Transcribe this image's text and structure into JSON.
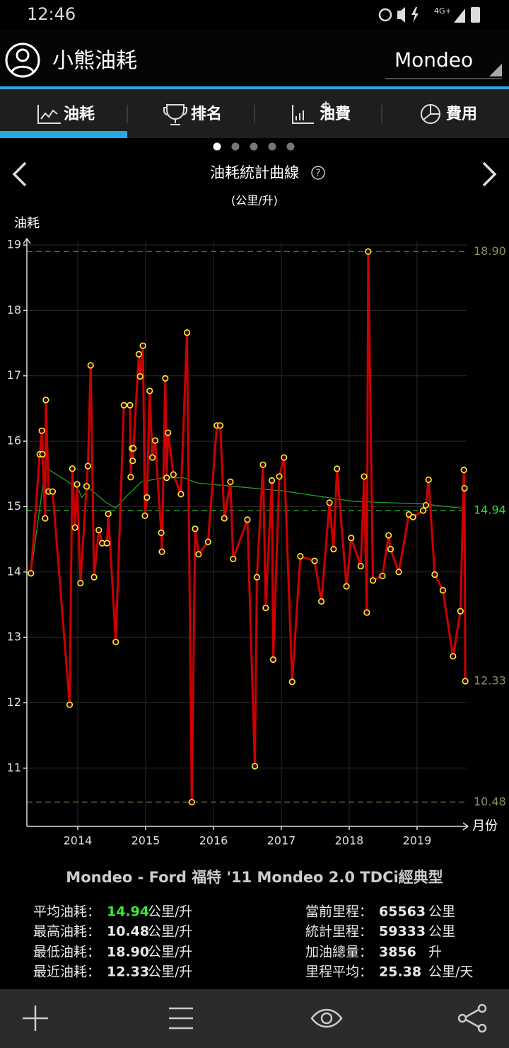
{
  "status_bar": {
    "time": "12:46",
    "network": "4G+"
  },
  "header": {
    "title": "小熊油耗",
    "car": "Mondeo"
  },
  "tabs": [
    "油耗",
    "排名",
    "油費",
    "費用"
  ],
  "chart_data": {
    "type": "line",
    "title": "油耗統計曲線",
    "subtitle": "(公里/升)",
    "y_label": "油耗",
    "x_label": "月份",
    "xlim": [
      2013.25,
      2019.73
    ],
    "xticks": [
      2014,
      2015,
      2016,
      2017,
      2018,
      2019
    ],
    "ylim": [
      10.11,
      19.05
    ],
    "yticks": [
      11,
      12,
      13,
      14,
      15,
      16,
      17,
      18,
      19
    ],
    "grid": true,
    "series": [
      {
        "color": "#cc0000",
        "marker_color": "#ffee33",
        "x": [
          2013.31,
          2013.44,
          2013.47,
          2013.48,
          2013.52,
          2013.53,
          2013.57,
          2013.63,
          2013.88,
          2013.92,
          2013.96,
          2013.99,
          2014.04,
          2014.13,
          2014.15,
          2014.19,
          2014.24,
          2014.31,
          2014.36,
          2014.43,
          2014.45,
          2014.56,
          2014.68,
          2014.77,
          2014.78,
          2014.8,
          2014.81,
          2014.82,
          2014.9,
          2014.92,
          2014.96,
          2014.99,
          2015.02,
          2015.06,
          2015.1,
          2015.14,
          2015.23,
          2015.24,
          2015.29,
          2015.31,
          2015.33,
          2015.41,
          2015.52,
          2015.61,
          2015.68,
          2015.73,
          2015.78,
          2015.92,
          2016.05,
          2016.1,
          2016.16,
          2016.25,
          2016.29,
          2016.5,
          2016.61,
          2016.64,
          2016.73,
          2016.77,
          2016.86,
          2016.88,
          2016.97,
          2017.04,
          2017.16,
          2017.28,
          2017.49,
          2017.59,
          2017.71,
          2017.77,
          2017.82,
          2017.96,
          2018.03,
          2018.17,
          2018.22,
          2018.26,
          2018.28,
          2018.35,
          2018.49,
          2018.58,
          2018.61,
          2018.73,
          2018.88,
          2018.94,
          2019.09,
          2019.13,
          2019.17,
          2019.26,
          2019.38,
          2019.53,
          2019.64,
          2019.69,
          2019.7,
          2019.71
        ],
        "values": [
          13.98,
          15.8,
          16.16,
          15.8,
          14.82,
          16.63,
          15.23,
          15.23,
          11.97,
          15.58,
          14.68,
          15.34,
          13.83,
          15.31,
          15.62,
          17.16,
          13.92,
          14.64,
          14.44,
          14.44,
          14.89,
          12.93,
          16.55,
          16.55,
          15.45,
          15.89,
          15.7,
          15.89,
          17.33,
          16.99,
          17.46,
          14.86,
          15.14,
          16.77,
          15.75,
          16.01,
          14.6,
          14.31,
          16.96,
          15.44,
          16.13,
          15.49,
          15.19,
          17.66,
          10.48,
          14.66,
          14.27,
          14.46,
          16.24,
          16.24,
          14.82,
          15.38,
          14.2,
          14.8,
          11.03,
          13.92,
          15.64,
          13.45,
          15.4,
          12.66,
          15.46,
          15.75,
          12.32,
          14.24,
          14.17,
          13.55,
          15.06,
          14.35,
          15.58,
          13.78,
          14.52,
          14.09,
          15.46,
          13.38,
          18.9,
          13.87,
          13.94,
          14.56,
          14.35,
          14.0,
          14.88,
          14.84,
          14.94,
          15.02,
          15.41,
          13.96,
          13.72,
          12.71,
          13.4,
          15.56,
          15.28,
          12.33
        ]
      },
      {
        "color": "#22aa22",
        "x": [
          2013.31,
          2013.48,
          2013.52,
          2013.69,
          2014.0,
          2014.06,
          2014.17,
          2014.42,
          2014.56,
          2014.73,
          2014.94,
          2015.25,
          2015.56,
          2015.77,
          2016.19,
          2017.02,
          2018.06,
          2019.1,
          2019.71
        ],
        "values": [
          13.98,
          15.28,
          15.6,
          15.49,
          15.28,
          15.14,
          15.28,
          15.06,
          14.98,
          15.17,
          15.38,
          15.44,
          15.44,
          15.36,
          15.32,
          15.24,
          15.08,
          15.04,
          14.97
        ]
      }
    ],
    "reference_lines": [
      {
        "value": 18.9,
        "label": "18.90",
        "color": "#8c8c5a"
      },
      {
        "value": 14.94,
        "label": "14.94",
        "color": "#33dd33"
      },
      {
        "value": 12.33,
        "label": "12.33",
        "color": "#8c8c5a",
        "line": false
      },
      {
        "value": 10.48,
        "label": "10.48",
        "color": "#8c8c5a"
      }
    ]
  },
  "info": {
    "title": "Mondeo - Ford 福特 '11 Mondeo 2.0 TDCi經典型",
    "left": [
      {
        "label": "平均油耗：",
        "value": "14.94",
        "unit": "公里/升",
        "color": "#33ee33"
      },
      {
        "label": "最高油耗：",
        "value": "10.48",
        "unit": "公里/升"
      },
      {
        "label": "最低油耗：",
        "value": "18.90",
        "unit": "公里/升"
      },
      {
        "label": "最近油耗：",
        "value": "12.33",
        "unit": "公里/升"
      }
    ],
    "right": [
      {
        "label": "當前里程：",
        "value": "65563",
        "unit": "公里"
      },
      {
        "label": "統計里程：",
        "value": "59333",
        "unit": "公里"
      },
      {
        "label": "加油總量：",
        "value": "3856",
        "unit": "升"
      },
      {
        "label": "里程平均：",
        "value": "25.38",
        "unit": "公里/天"
      }
    ]
  }
}
